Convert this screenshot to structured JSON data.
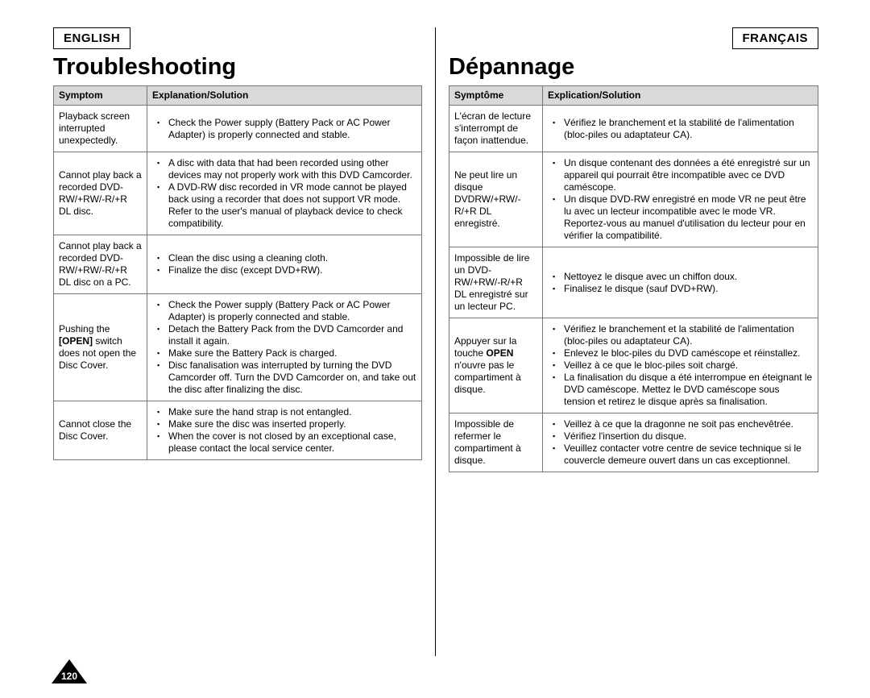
{
  "page_number": "120",
  "left": {
    "lang_label": "ENGLISH",
    "title": "Troubleshooting",
    "col_symptom": "Symptom",
    "col_solution": "Explanation/Solution",
    "rows": [
      {
        "symptom_html": "Playback screen interrupted unexpectedly.",
        "solutions": [
          "Check the Power supply (Battery Pack or AC Power Adapter) is properly connected and stable."
        ]
      },
      {
        "symptom_html": "Cannot play back a recorded DVD-RW/+RW/-R/+R DL disc.",
        "solutions": [
          "A disc with data that had been recorded using other devices may not properly work with this DVD Camcorder.",
          "A DVD-RW disc recorded in VR mode cannot be played back using a recorder that does not support VR mode. Refer to the user's manual of playback device to check compatibility."
        ]
      },
      {
        "symptom_html": "Cannot play back a recorded DVD-RW/+RW/-R/+R DL disc on a PC.",
        "solutions": [
          "Clean the disc using a cleaning cloth.",
          "Finalize the disc (except DVD+RW)."
        ]
      },
      {
        "symptom_html": "Pushing the <b>[OPEN]</b> switch does not open the Disc Cover.",
        "solutions": [
          "Check the Power supply (Battery Pack or AC Power Adapter) is properly connected and stable.",
          "Detach the Battery Pack from the DVD Camcorder and install it again.",
          "Make sure the Battery Pack is charged.",
          "Disc fanalisation was interrupted by turning the DVD Camcorder off. Turn the DVD Camcorder on, and take out the disc after finalizing the disc."
        ]
      },
      {
        "symptom_html": "Cannot close the Disc Cover.",
        "solutions": [
          "Make sure the hand strap is not entangled.",
          "Make sure the disc was inserted properly.",
          "When the cover is not closed by an exceptional case, please contact the local service center."
        ]
      }
    ]
  },
  "right": {
    "lang_label": "FRANÇAIS",
    "title": "Dépannage",
    "col_symptom": "Symptôme",
    "col_solution": "Explication/Solution",
    "rows": [
      {
        "symptom_html": "L'écran de lecture s'interrompt de façon inattendue.",
        "solutions": [
          "Vérifiez le branchement et la stabilité de l'alimentation (bloc-piles ou adaptateur CA)."
        ]
      },
      {
        "symptom_html": "Ne peut lire un disque DVDRW/+RW/-R/+R DL enregistré.",
        "solutions": [
          "Un disque contenant des données a été enregistré sur un appareil qui pourrait être incompatible avec ce DVD caméscope.",
          "Un disque DVD-RW enregistré en mode VR ne peut être lu avec un lecteur incompatible avec le mode VR. Reportez-vous au manuel d'utilisation du lecteur pour en vérifier la compatibilité."
        ]
      },
      {
        "symptom_html": "Impossible de lire un DVD-RW/+RW/-R/+R DL enregistré sur un lecteur PC.",
        "solutions": [
          "Nettoyez le disque avec un chiffon doux.",
          "Finalisez le disque (sauf DVD+RW)."
        ]
      },
      {
        "symptom_html": "Appuyer sur la touche <b>OPEN</b> n'ouvre pas le compartiment à disque.",
        "solutions": [
          "Vérifiez le branchement et la stabilité de l'alimentation (bloc-piles ou adaptateur CA).",
          "Enlevez le bloc-piles du DVD caméscope et réinstallez.",
          "Veillez à ce que le bloc-piles soit chargé.",
          "La finalisation du disque a été interrompue en éteignant le DVD caméscope. Mettez le DVD caméscope sous tension et retirez le disque après sa finalisation."
        ]
      },
      {
        "symptom_html": "Impossible de refermer le compartiment à disque.",
        "solutions": [
          "Veillez à ce que la dragonne ne soit pas enchevêtrée.",
          "Vérifiez l'insertion du disque.",
          "Veuillez contacter votre centre de sevice technique si le couvercle demeure ouvert dans un cas exceptionnel."
        ]
      }
    ]
  }
}
